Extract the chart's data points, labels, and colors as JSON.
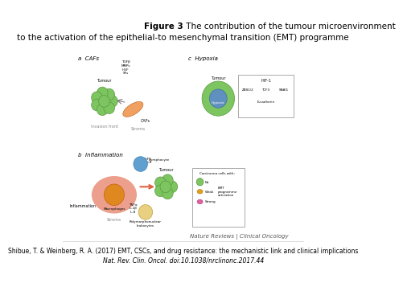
{
  "title_bold": "Figure 3",
  "title_normal": " The contribution of the tumour microenvironment",
  "title_line2": "to the activation of the epithelial-to mesenchymal transition (EMT) programme",
  "citation_line1": "Shibue, T. & Weinberg, R. A. (2017) EMT, CSCs, and drug resistance: the mechanistic link and clinical implications",
  "citation_line2": "Nat. Rev. Clin. Oncol. doi:10.1038/nrclinonc.2017.44",
  "journal_label": "Nature Reviews | Clinical Oncology",
  "background_color": "#ffffff",
  "title_fontsize": 7.5,
  "citation_fontsize": 5.5,
  "journal_fontsize": 5.0
}
